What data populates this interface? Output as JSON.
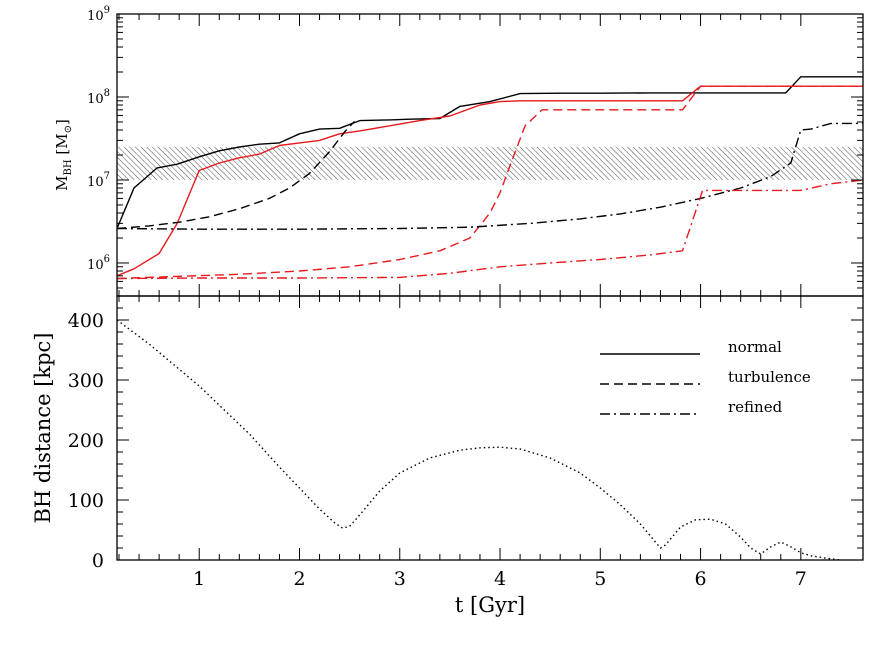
{
  "chart_data": [
    {
      "type": "line",
      "xlabel": "",
      "ylabel": "M_BH [M_⊙]",
      "ylabel_parts": {
        "main": "M",
        "sub": "BH",
        "unit_open": " [M",
        "unit_sub": "⊙",
        "unit_close": "]"
      },
      "yscale": "log",
      "xlim": [
        0.18,
        7.62
      ],
      "ylim": [
        400000,
        1000000000
      ],
      "y_ticks": [
        {
          "value": 1000000,
          "base": "10",
          "exp": "6"
        },
        {
          "value": 10000000,
          "base": "10",
          "exp": "7"
        },
        {
          "value": 100000000,
          "base": "10",
          "exp": "8"
        },
        {
          "value": 1000000000,
          "base": "10",
          "exp": "9"
        }
      ],
      "band": {
        "y0": 10000000,
        "y1": 25000000,
        "style": "hatched"
      },
      "series": [
        {
          "key": "black-solid",
          "color": "#000000",
          "dash": "solid",
          "x": [
            0.18,
            0.35,
            0.58,
            0.78,
            1.0,
            1.2,
            1.4,
            1.6,
            1.8,
            2.0,
            2.2,
            2.4,
            2.6,
            2.9,
            3.1,
            3.4,
            3.6,
            3.9,
            4.2,
            4.6,
            5.0,
            5.5,
            6.0,
            6.5,
            6.85,
            7.0,
            7.62
          ],
          "y": [
            2600000,
            8000000,
            14000000,
            15500000,
            19000000,
            22500000,
            25000000,
            27000000,
            28000000,
            36000000,
            41000000,
            42000000,
            52000000,
            53000000,
            54000000,
            55000000,
            77000000,
            88000000,
            110000000,
            111000000,
            111000000,
            112000000,
            112000000,
            112000000,
            112000000,
            175000000,
            175000000
          ]
        },
        {
          "key": "red-solid",
          "color": "#e8191d",
          "dash": "solid",
          "x": [
            0.18,
            0.35,
            0.6,
            0.78,
            1.0,
            1.2,
            1.4,
            1.6,
            1.8,
            2.0,
            2.2,
            2.4,
            2.6,
            2.9,
            3.2,
            3.5,
            3.8,
            4.0,
            4.2,
            4.6,
            5.0,
            5.4,
            5.82,
            6.0,
            6.5,
            7.0,
            7.62
          ],
          "y": [
            700000,
            850000,
            1300000,
            3000000,
            13000000,
            16000000,
            18500000,
            20500000,
            26000000,
            28000000,
            30000000,
            36000000,
            39000000,
            45000000,
            52000000,
            59000000,
            80000000,
            88000000,
            90000000,
            90000000,
            90000000,
            90000000,
            90000000,
            135000000,
            135000000,
            135000000,
            135000000
          ]
        },
        {
          "key": "black-dashed",
          "color": "#000000",
          "dash": "dashed",
          "x": [
            0.18,
            0.5,
            0.8,
            1.1,
            1.4,
            1.7,
            1.9,
            2.1,
            2.3,
            2.45,
            2.55
          ],
          "y": [
            2600000,
            2800000,
            3100000,
            3600000,
            4500000,
            6000000,
            8000000,
            12000000,
            22000000,
            38000000,
            51000000
          ]
        },
        {
          "key": "red-dashed",
          "color": "#e8191d",
          "dash": "dashed",
          "x": [
            0.18,
            0.8,
            1.4,
            2.0,
            2.5,
            3.0,
            3.4,
            3.7,
            3.9,
            4.0,
            4.1,
            4.25,
            4.42,
            5.0,
            5.5,
            5.82,
            6.0,
            6.5,
            7.0,
            7.62
          ],
          "y": [
            650000,
            690000,
            730000,
            800000,
            900000,
            1100000,
            1400000,
            2000000,
            4000000,
            7000000,
            15000000,
            45000000,
            70000000,
            70000000,
            70000000,
            70000000,
            135000000,
            135000000,
            135000000,
            135000000
          ]
        },
        {
          "key": "black-dashdot",
          "color": "#000000",
          "dash": "dashdot",
          "x": [
            0.18,
            1.0,
            2.0,
            3.0,
            3.7,
            4.3,
            4.8,
            5.2,
            5.6,
            6.0,
            6.4,
            6.7,
            6.9,
            7.0,
            7.1,
            7.3,
            7.62
          ],
          "y": [
            2600000,
            2550000,
            2550000,
            2600000,
            2700000,
            3000000,
            3400000,
            3900000,
            4700000,
            6000000,
            8000000,
            11000000,
            16000000,
            40000000,
            41000000,
            48000000,
            48000000
          ]
        },
        {
          "key": "red-dashdot",
          "color": "#e8191d",
          "dash": "dashdot",
          "x": [
            0.18,
            1.0,
            2.0,
            3.0,
            3.5,
            4.0,
            4.5,
            5.0,
            5.5,
            5.82,
            6.02,
            6.5,
            7.0,
            7.3,
            7.62
          ],
          "y": [
            650000,
            660000,
            660000,
            670000,
            750000,
            900000,
            1000000,
            1100000,
            1250000,
            1400000,
            7500000,
            7500000,
            7500000,
            9000000,
            10000000
          ]
        }
      ]
    },
    {
      "type": "line",
      "xlabel": "t [Gyr]",
      "ylabel": "BH distance [kpc]",
      "xlim": [
        0.18,
        7.62
      ],
      "ylim": [
        0,
        440
      ],
      "x_ticks": [
        1,
        2,
        3,
        4,
        5,
        6,
        7
      ],
      "x_tick_labels": [
        "1",
        "2",
        "3",
        "4",
        "5",
        "6",
        "7"
      ],
      "y_ticks": [
        0,
        100,
        200,
        300,
        400
      ],
      "y_tick_labels": [
        "0",
        "100",
        "200",
        "300",
        "400"
      ],
      "legend": {
        "placement": "top-right",
        "entries": [
          {
            "label": "normal",
            "dash": "solid"
          },
          {
            "label": "turbulence",
            "dash": "dashed"
          },
          {
            "label": "refined",
            "dash": "dashdot"
          }
        ]
      },
      "series": [
        {
          "key": "distance",
          "color": "#000000",
          "dash": "dotted",
          "x": [
            0.18,
            0.5,
            1.0,
            1.5,
            1.8,
            2.0,
            2.2,
            2.35,
            2.43,
            2.5,
            2.6,
            2.8,
            3.0,
            3.3,
            3.6,
            3.8,
            4.0,
            4.2,
            4.5,
            4.8,
            5.0,
            5.2,
            5.4,
            5.5,
            5.6,
            5.65,
            5.7,
            5.8,
            5.95,
            6.1,
            6.25,
            6.4,
            6.5,
            6.6,
            6.7,
            6.8,
            6.9,
            7.0,
            7.1,
            7.25,
            7.4
          ],
          "y": [
            400,
            360,
            290,
            210,
            155,
            120,
            85,
            62,
            53,
            56,
            75,
            115,
            145,
            170,
            183,
            187,
            188,
            185,
            170,
            145,
            120,
            92,
            60,
            40,
            20,
            25,
            35,
            55,
            67,
            68,
            60,
            38,
            20,
            10,
            22,
            30,
            22,
            12,
            7,
            3,
            0
          ]
        }
      ]
    }
  ]
}
